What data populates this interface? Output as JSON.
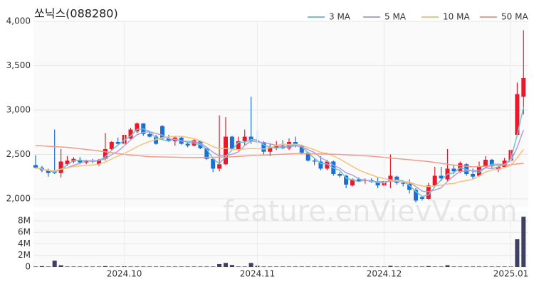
{
  "watermark": "feature.enVievV.com",
  "chart_data": [
    {
      "type": "candlestick",
      "title": "쏘닉스(088280)",
      "open": [
        2380,
        2350,
        2320,
        2300,
        2290,
        2390,
        2420,
        2440,
        2410,
        2430,
        2390,
        2450,
        2560,
        2640,
        2620,
        2680,
        2760,
        2850,
        2730,
        2700,
        2820,
        2680,
        2650,
        2690,
        2620,
        2600,
        2650,
        2570,
        2450,
        2340,
        2390,
        2700,
        2560,
        2650,
        2700,
        2650,
        2640,
        2530,
        2580,
        2600,
        2570,
        2640,
        2600,
        2520,
        2430,
        2420,
        2340,
        2420,
        2280,
        2260,
        2150,
        2220,
        2200,
        2210,
        2190,
        2150,
        2200,
        2250,
        2180,
        2170,
        2100,
        2020,
        2000,
        2150,
        2260,
        2220,
        2340,
        2310,
        2390,
        2280,
        2260,
        2360,
        2440,
        2330,
        2360,
        2430,
        2720,
        3150
      ],
      "high": [
        2490,
        2370,
        2340,
        2780,
        2560,
        2480,
        2470,
        2470,
        2440,
        2450,
        2450,
        2740,
        2650,
        2690,
        2730,
        2800,
        2860,
        2850,
        2750,
        2720,
        2830,
        2720,
        2700,
        2700,
        2640,
        2670,
        2660,
        2580,
        2460,
        2940,
        2920,
        2710,
        2700,
        2780,
        3150,
        2770,
        2650,
        2620,
        2650,
        2660,
        2680,
        2700,
        2610,
        2530,
        2450,
        2480,
        2440,
        2430,
        2300,
        2270,
        2230,
        2240,
        2230,
        2230,
        2240,
        2220,
        2500,
        2260,
        2200,
        2220,
        2120,
        2030,
        2180,
        2360,
        2360,
        2560,
        2380,
        2420,
        2400,
        2340,
        2420,
        2480,
        2450,
        2380,
        2460,
        2560,
        3310,
        3900
      ],
      "low": [
        2340,
        2300,
        2250,
        2280,
        2240,
        2370,
        2400,
        2390,
        2390,
        2400,
        2370,
        2430,
        2540,
        2600,
        2600,
        2670,
        2740,
        2710,
        2690,
        2610,
        2670,
        2640,
        2600,
        2610,
        2580,
        2590,
        2560,
        2440,
        2300,
        2310,
        2380,
        2550,
        2540,
        2600,
        2620,
        2620,
        2500,
        2480,
        2550,
        2560,
        2550,
        2580,
        2500,
        2420,
        2380,
        2320,
        2320,
        2260,
        2240,
        2120,
        2140,
        2190,
        2170,
        2180,
        2120,
        2120,
        2120,
        2160,
        2140,
        2060,
        1960,
        1980,
        1990,
        2130,
        2200,
        2200,
        2280,
        2290,
        2260,
        2220,
        2250,
        2350,
        2350,
        2300,
        2350,
        2380,
        2700,
        2950
      ],
      "close": [
        2350,
        2320,
        2290,
        2290,
        2420,
        2430,
        2450,
        2410,
        2430,
        2420,
        2440,
        2560,
        2640,
        2620,
        2720,
        2780,
        2850,
        2730,
        2700,
        2620,
        2680,
        2650,
        2690,
        2620,
        2600,
        2660,
        2570,
        2450,
        2340,
        2390,
        2700,
        2560,
        2650,
        2700,
        2650,
        2640,
        2530,
        2580,
        2600,
        2570,
        2640,
        2600,
        2520,
        2430,
        2420,
        2340,
        2420,
        2280,
        2260,
        2160,
        2220,
        2200,
        2210,
        2190,
        2150,
        2200,
        2260,
        2180,
        2170,
        2100,
        1980,
        2000,
        2150,
        2260,
        2230,
        2340,
        2310,
        2400,
        2280,
        2250,
        2360,
        2440,
        2370,
        2360,
        2430,
        2550,
        3180,
        3360
      ],
      "up_color": "#e8192c",
      "down_color": "#1a6fd8",
      "series": [
        {
          "name": "3 MA",
          "color": "#6cc5d0",
          "values": [
            2350,
            2335,
            2320,
            2300,
            2333,
            2380,
            2433,
            2430,
            2430,
            2420,
            2430,
            2473,
            2547,
            2607,
            2660,
            2707,
            2783,
            2787,
            2760,
            2683,
            2667,
            2650,
            2673,
            2653,
            2637,
            2627,
            2610,
            2560,
            2453,
            2393,
            2477,
            2550,
            2637,
            2637,
            2667,
            2663,
            2607,
            2583,
            2570,
            2583,
            2603,
            2603,
            2587,
            2517,
            2457,
            2397,
            2393,
            2347,
            2320,
            2233,
            2213,
            2193,
            2210,
            2200,
            2183,
            2180,
            2203,
            2213,
            2203,
            2150,
            2083,
            2027,
            2043,
            2137,
            2213,
            2277,
            2293,
            2350,
            2330,
            2313,
            2297,
            2350,
            2390,
            2390,
            2387,
            2447,
            2720,
            3030
          ]
        },
        {
          "name": "5 MA",
          "color": "#b39ddb",
          "values": [
            2350,
            2335,
            2320,
            2313,
            2334,
            2350,
            2378,
            2400,
            2428,
            2428,
            2430,
            2452,
            2498,
            2536,
            2596,
            2664,
            2722,
            2748,
            2756,
            2736,
            2716,
            2676,
            2668,
            2652,
            2648,
            2644,
            2628,
            2580,
            2524,
            2482,
            2490,
            2502,
            2528,
            2600,
            2652,
            2640,
            2634,
            2620,
            2600,
            2584,
            2584,
            2598,
            2586,
            2552,
            2522,
            2462,
            2426,
            2378,
            2344,
            2292,
            2268,
            2224,
            2210,
            2196,
            2194,
            2190,
            2202,
            2196,
            2192,
            2182,
            2138,
            2086,
            2080,
            2098,
            2124,
            2196,
            2258,
            2308,
            2314,
            2318,
            2320,
            2348,
            2340,
            2356,
            2392,
            2430,
            2578,
            2776
          ]
        },
        {
          "name": "10 MA",
          "color": "#f4c27a",
          "values": [
            2350,
            2335,
            2320,
            2313,
            2334,
            2350,
            2364,
            2370,
            2377,
            2381,
            2390,
            2414,
            2449,
            2482,
            2512,
            2547,
            2587,
            2619,
            2646,
            2666,
            2690,
            2699,
            2704,
            2704,
            2692,
            2680,
            2652,
            2624,
            2588,
            2565,
            2567,
            2558,
            2554,
            2562,
            2567,
            2565,
            2561,
            2574,
            2600,
            2618,
            2612,
            2616,
            2603,
            2576,
            2553,
            2523,
            2512,
            2482,
            2448,
            2407,
            2365,
            2325,
            2294,
            2270,
            2243,
            2229,
            2213,
            2203,
            2194,
            2188,
            2164,
            2144,
            2138,
            2145,
            2153,
            2167,
            2172,
            2194,
            2205,
            2220,
            2258,
            2302,
            2324,
            2334,
            2354,
            2375,
            2462,
            2558
          ]
        },
        {
          "name": "50 MA",
          "color": "#f29b85",
          "values": [
            2600,
            2597,
            2592,
            2588,
            2584,
            2580,
            2572,
            2564,
            2556,
            2548,
            2540,
            2530,
            2520,
            2510,
            2500,
            2494,
            2488,
            2481,
            2475,
            2473,
            2472,
            2470,
            2469,
            2467,
            2466,
            2465,
            2466,
            2467,
            2468,
            2469,
            2470,
            2474,
            2478,
            2482,
            2486,
            2490,
            2493,
            2496,
            2499,
            2502,
            2505,
            2508,
            2510,
            2508,
            2507,
            2505,
            2503,
            2502,
            2500,
            2496,
            2492,
            2488,
            2484,
            2480,
            2473,
            2467,
            2460,
            2453,
            2447,
            2440,
            2433,
            2427,
            2420,
            2410,
            2400,
            2390,
            2380,
            2373,
            2367,
            2360,
            2363,
            2367,
            2370,
            2375,
            2380,
            2385,
            2393,
            2400
          ]
        }
      ],
      "ylim": [
        1920,
        4000
      ],
      "yticks": [
        {
          "value": 2000,
          "label": "2,000"
        },
        {
          "value": 2500,
          "label": "2,500"
        },
        {
          "value": 3000,
          "label": "3,000"
        },
        {
          "value": 3500,
          "label": "3,500"
        },
        {
          "value": 4000,
          "label": "4,000"
        }
      ],
      "grid": true,
      "legend": "top-right"
    },
    {
      "type": "bar",
      "categories": [
        null,
        null,
        null,
        null,
        null,
        null,
        null,
        null,
        null,
        null,
        null,
        null,
        null,
        null,
        "2024.10",
        null,
        null,
        null,
        null,
        null,
        null,
        null,
        null,
        null,
        null,
        null,
        null,
        null,
        null,
        null,
        null,
        null,
        null,
        null,
        null,
        "2024.11",
        null,
        null,
        null,
        null,
        null,
        null,
        null,
        null,
        null,
        null,
        null,
        null,
        null,
        null,
        null,
        null,
        null,
        null,
        null,
        "2024.12",
        null,
        null,
        null,
        null,
        null,
        null,
        null,
        null,
        null,
        null,
        null,
        null,
        null,
        null,
        null,
        null,
        null,
        null,
        null,
        "2025.01",
        null,
        null
      ],
      "values": [
        80000,
        150000,
        80000,
        1100000,
        300000,
        80000,
        80000,
        80000,
        80000,
        80000,
        80000,
        150000,
        80000,
        80000,
        120000,
        80000,
        80000,
        80000,
        80000,
        80000,
        80000,
        80000,
        80000,
        80000,
        80000,
        80000,
        80000,
        80000,
        80000,
        500000,
        700000,
        350000,
        80000,
        80000,
        700000,
        200000,
        80000,
        80000,
        80000,
        80000,
        80000,
        80000,
        80000,
        80000,
        80000,
        80000,
        80000,
        80000,
        80000,
        80000,
        80000,
        80000,
        80000,
        80000,
        80000,
        80000,
        200000,
        80000,
        80000,
        80000,
        80000,
        80000,
        150000,
        80000,
        80000,
        300000,
        80000,
        80000,
        80000,
        80000,
        80000,
        80000,
        80000,
        80000,
        80000,
        80000,
        4800000,
        8700000
      ],
      "color": "#3d3f63",
      "ylim": [
        0,
        9350000
      ],
      "yticks": [
        0,
        {
          "value": 2000000,
          "label": "2M"
        },
        {
          "value": 4000000,
          "label": "4M"
        },
        {
          "value": 6000000,
          "label": "6M"
        },
        {
          "value": 8000000,
          "label": "8M"
        }
      ],
      "grid": true
    }
  ]
}
